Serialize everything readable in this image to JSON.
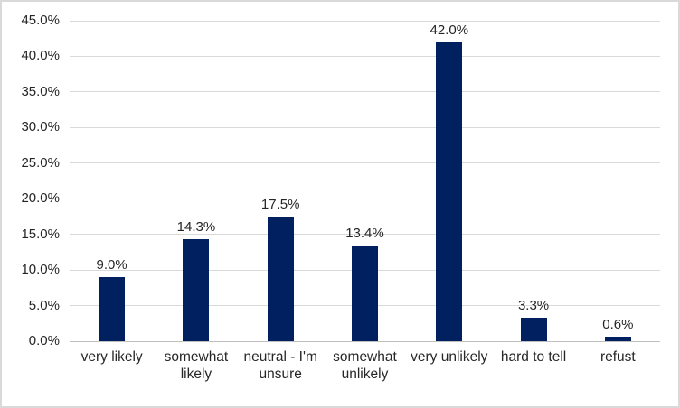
{
  "chart_data": {
    "type": "bar",
    "title": "",
    "xlabel": "",
    "ylabel": "",
    "categories": [
      "very likely",
      "somewhat likely",
      "neutral - I'm unsure",
      "somewhat unlikely",
      "very unlikely",
      "hard to tell",
      "refust"
    ],
    "values": [
      9.0,
      14.3,
      17.5,
      13.4,
      42.0,
      3.3,
      0.6
    ],
    "value_labels": [
      "9.0%",
      "14.3%",
      "17.5%",
      "13.4%",
      "42.0%",
      "3.3%",
      "0.6%"
    ],
    "ylim": [
      0,
      45
    ],
    "ytick_step": 5,
    "ytick_labels": [
      "0.0%",
      "5.0%",
      "10.0%",
      "15.0%",
      "20.0%",
      "25.0%",
      "30.0%",
      "35.0%",
      "40.0%",
      "45.0%"
    ],
    "grid": true,
    "legend": "none",
    "colors": {
      "bar_fill": "#002060",
      "gridline": "#d9d9d9",
      "axis_line": "#bfbfbf",
      "text": "#262626",
      "chart_border": "#d9d9d9",
      "background": "#ffffff"
    }
  }
}
